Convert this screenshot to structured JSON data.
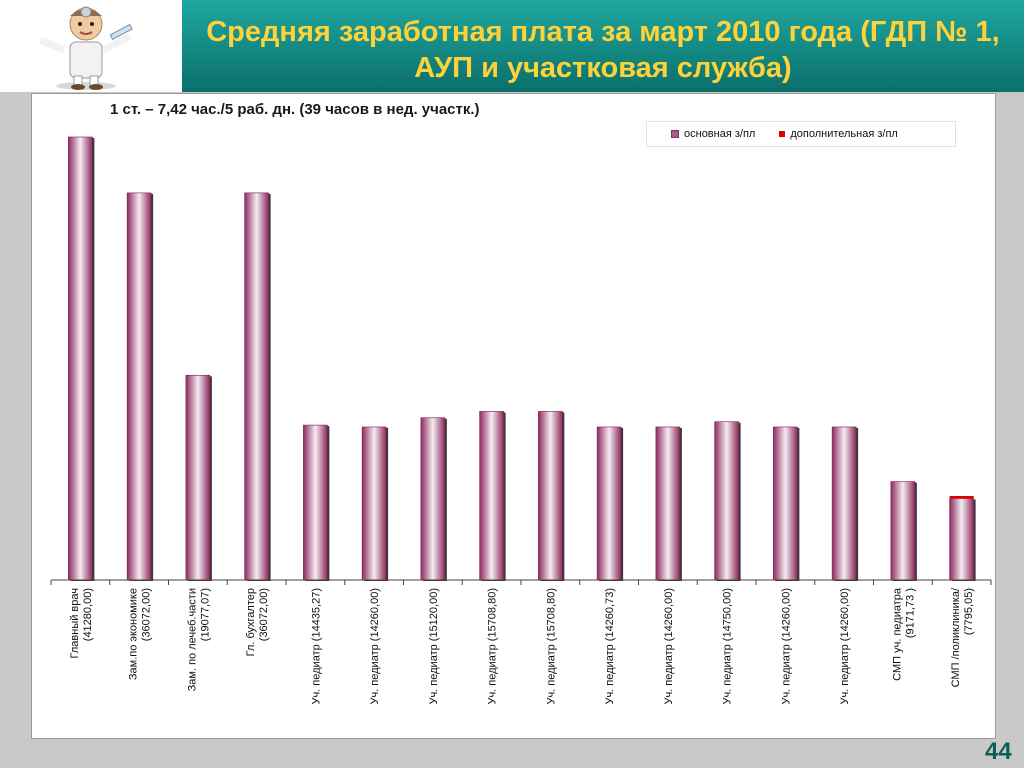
{
  "slide": {
    "title_line1": "Средняя заработная плата за март 2010 года (ГДП № 1,",
    "title_line2": "АУП и участковая служба)",
    "page_number": "44"
  },
  "logo": {
    "icon": "doctor-cartoon-icon"
  },
  "colors": {
    "title_band": "#138d86",
    "title_text": "#ffd23a",
    "bar_main": "#8e2a5e",
    "bar_extra": "#e00000"
  },
  "chart_data": {
    "type": "bar",
    "subtitle": "1 ст. – 7,42 час./5 раб. дн. (39 часов в нед. участк.)",
    "legend": [
      {
        "name": "основная з/пл",
        "color": "#b05a8a"
      },
      {
        "name": "дополнительная з/пл",
        "color": "#e00000"
      }
    ],
    "legend_position": "top-right",
    "categories": [
      "Главный врач (41280,00)",
      "Зам.по экономике (36072,00)",
      "Зам. по лечеб.части (19077,07)",
      "Гл. бухгалтер (36072,00)",
      "Уч. педиатр (14435,27)",
      "Уч. педиатр (14260,00)",
      "Уч. педиатр (15120,00)",
      "Уч. педиатр (15708,80)",
      "Уч. педиатр (15708,80)",
      "Уч. педиатр (14260,73)",
      "Уч. педиатр (14260,00)",
      "Уч. педиатр (14750,00)",
      "Уч. педиатр (14260,00)",
      "Уч. педиатр (14260,00)",
      "СМП уч. педиатра (9171,73 )",
      "СМП /поликлиника/ (7795,05)"
    ],
    "series": [
      {
        "name": "основная з/пл",
        "values": [
          41280.0,
          36072.0,
          19077.07,
          36072.0,
          14435.27,
          14260.0,
          15120.0,
          15708.8,
          15708.8,
          14260.73,
          14260.0,
          14750.0,
          14260.0,
          14260.0,
          9171.73,
          7595.05
        ]
      },
      {
        "name": "дополнительная з/пл",
        "values": [
          0,
          0,
          0,
          0,
          0,
          0,
          0,
          0,
          0,
          0,
          0,
          0,
          0,
          0,
          0,
          200
        ]
      }
    ],
    "stacked": true,
    "ylim": [
      0,
      41280
    ],
    "grid": false
  }
}
